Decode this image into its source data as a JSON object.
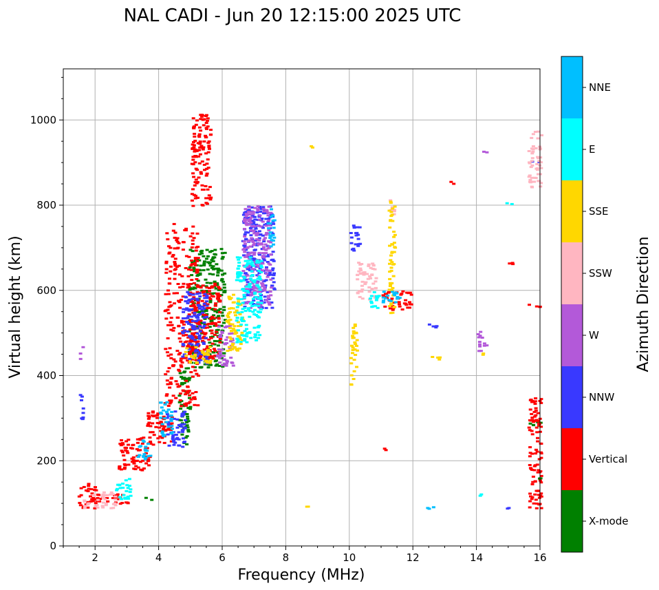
{
  "chart_data": {
    "type": "scatter",
    "title": "NAL CADI - Jun 20 12:15:00 2025 UTC",
    "xlabel": "Frequency (MHz)",
    "ylabel": "Virtual height (km)",
    "xlim": [
      1,
      16
    ],
    "ylim": [
      0,
      1120
    ],
    "xticks": [
      2,
      4,
      6,
      8,
      10,
      12,
      14,
      16
    ],
    "xtick_labels": [
      "2",
      "4",
      "6",
      "8",
      "10",
      "12",
      "14",
      "16"
    ],
    "yticks": [
      0,
      200,
      400,
      600,
      800,
      1000
    ],
    "ytick_labels": [
      "0",
      "200",
      "400",
      "600",
      "800",
      "1000"
    ],
    "grid": true,
    "colorbar": {
      "label": "Azimuth Direction",
      "categories": [
        "X-mode",
        "Vertical",
        "NNW",
        "W",
        "SSW",
        "SSE",
        "E",
        "NNE"
      ],
      "colors": [
        "#008000",
        "#ff0000",
        "#3939ff",
        "#b359d9",
        "#ffb6c1",
        "#ffd700",
        "#00ffff",
        "#00bfff"
      ]
    },
    "clusters": [
      {
        "name": "X-mode",
        "color": "#008000",
        "regions": [
          [
            4.6,
            4.95,
            240,
            420
          ],
          [
            4.9,
            6.05,
            420,
            700
          ],
          [
            3.5,
            3.75,
            110,
            120
          ],
          [
            15.6,
            16,
            280,
            295
          ],
          [
            15.6,
            16,
            160,
            165
          ]
        ]
      },
      {
        "name": "Vertical",
        "color": "#ff0000",
        "regions": [
          [
            1.45,
            2.0,
            90,
            150
          ],
          [
            2.0,
            3.1,
            100,
            125
          ],
          [
            2.7,
            3.7,
            180,
            260
          ],
          [
            3.6,
            4.4,
            240,
            320
          ],
          [
            4.15,
            5.2,
            330,
            760
          ],
          [
            4.9,
            5.9,
            440,
            620
          ],
          [
            5.0,
            5.6,
            800,
            1015
          ],
          [
            11.0,
            11.95,
            555,
            600
          ],
          [
            15.6,
            16,
            90,
            350
          ],
          [
            10.9,
            11.1,
            225,
            232
          ],
          [
            14.7,
            15.1,
            660,
            668
          ],
          [
            13.0,
            13.3,
            850,
            858
          ],
          [
            15.6,
            16,
            560,
            570
          ]
        ]
      },
      {
        "name": "NNW",
        "color": "#3939ff",
        "regions": [
          [
            1.48,
            1.58,
            290,
            380
          ],
          [
            4.2,
            4.8,
            230,
            320
          ],
          [
            4.7,
            5.5,
            430,
            600
          ],
          [
            6.6,
            7.6,
            560,
            800
          ],
          [
            10.0,
            10.3,
            690,
            760
          ],
          [
            12.4,
            12.8,
            515,
            525
          ],
          [
            14.7,
            15.1,
            90,
            95
          ],
          [
            15.6,
            16,
            900,
            905
          ]
        ]
      },
      {
        "name": "W",
        "color": "#b359d9",
        "regions": [
          [
            1.48,
            1.58,
            440,
            470
          ],
          [
            5.8,
            6.3,
            420,
            520
          ],
          [
            6.6,
            7.5,
            560,
            800
          ],
          [
            14.0,
            14.3,
            460,
            505
          ],
          [
            14.0,
            14.3,
            920,
            928
          ]
        ]
      },
      {
        "name": "SSW",
        "color": "#ffb6c1",
        "regions": [
          [
            1.6,
            2.6,
            90,
            130
          ],
          [
            10.2,
            10.8,
            580,
            670
          ],
          [
            11.2,
            11.4,
            780,
            815
          ],
          [
            15.6,
            16,
            840,
            975
          ]
        ]
      },
      {
        "name": "SSE",
        "color": "#ffd700",
        "regions": [
          [
            4.8,
            5.6,
            430,
            470
          ],
          [
            6.1,
            6.6,
            460,
            600
          ],
          [
            11.2,
            11.4,
            540,
            815
          ],
          [
            10.0,
            10.2,
            370,
            530
          ],
          [
            12.4,
            12.8,
            440,
            450
          ],
          [
            14.0,
            14.3,
            450,
            455
          ],
          [
            8.5,
            8.8,
            88,
            95
          ],
          [
            8.6,
            8.8,
            935,
            942
          ]
        ]
      },
      {
        "name": "E",
        "color": "#00ffff",
        "regions": [
          [
            2.6,
            3.1,
            110,
            160
          ],
          [
            6.4,
            7.2,
            480,
            680
          ],
          [
            10.5,
            10.9,
            560,
            600
          ],
          [
            14.8,
            15.2,
            805,
            810
          ],
          [
            14.0,
            14.3,
            120,
            125
          ]
        ]
      },
      {
        "name": "NNE",
        "color": "#00bfff",
        "regions": [
          [
            3.3,
            3.7,
            200,
            250
          ],
          [
            4.0,
            4.4,
            260,
            340
          ],
          [
            7.4,
            7.6,
            700,
            800
          ],
          [
            11.0,
            11.6,
            570,
            600
          ],
          [
            12.4,
            12.8,
            88,
            95
          ]
        ]
      }
    ]
  }
}
